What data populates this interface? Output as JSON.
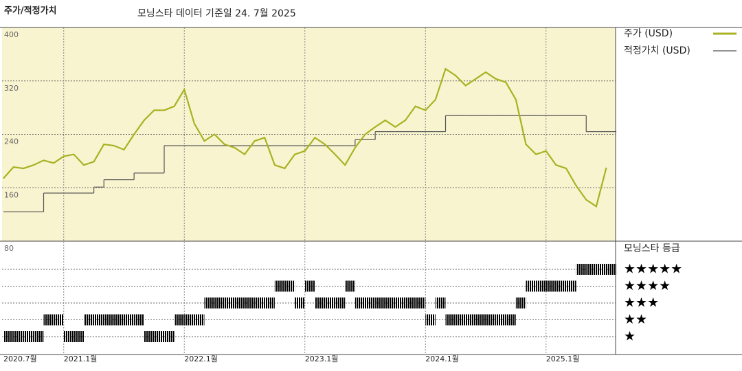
{
  "chart_data": {
    "type": "line",
    "title": "주가/적정가치",
    "subtitle": "모닝스타 데이터 기준일 24. 7월 2025",
    "categories": [
      "2020.7월",
      null,
      null,
      null,
      null,
      null,
      "2021.1월",
      null,
      null,
      null,
      null,
      null,
      null,
      null,
      null,
      null,
      null,
      null,
      "2022.1월",
      null,
      null,
      null,
      null,
      null,
      null,
      null,
      null,
      null,
      null,
      null,
      "2023.1월",
      null,
      null,
      null,
      null,
      null,
      null,
      null,
      null,
      null,
      null,
      null,
      "2024.1월",
      null,
      null,
      null,
      null,
      null,
      null,
      null,
      null,
      null,
      null,
      null,
      "2025.1월",
      null,
      null,
      null,
      null,
      null,
      null
    ],
    "series": [
      {
        "name": "주가 (USD)",
        "color": "#a9b122",
        "style": "line",
        "values": [
          174,
          191,
          189,
          194,
          201,
          197,
          207,
          210,
          194,
          199,
          225,
          223,
          217,
          240,
          261,
          276,
          276,
          282,
          307,
          256,
          230,
          240,
          225,
          220,
          210,
          230,
          235,
          194,
          189,
          210,
          215,
          235,
          225,
          210,
          194,
          220,
          240,
          251,
          261,
          251,
          261,
          282,
          276,
          292,
          338,
          328,
          313,
          323,
          333,
          323,
          318,
          292,
          225,
          210,
          215,
          194,
          189,
          163,
          142,
          132,
          190
        ]
      },
      {
        "name": "적정가치 (USD)",
        "color": "#555555",
        "style": "step",
        "values": [
          124,
          124,
          124,
          124,
          152,
          152,
          152,
          152,
          152,
          161,
          172,
          172,
          172,
          182,
          182,
          182,
          223,
          223,
          223,
          223,
          223,
          223,
          223,
          223,
          223,
          223,
          223,
          223,
          223,
          223,
          223,
          223,
          223,
          223,
          223,
          232,
          232,
          244,
          244,
          244,
          244,
          244,
          244,
          244,
          268,
          268,
          268,
          268,
          268,
          268,
          268,
          268,
          268,
          268,
          268,
          268,
          268,
          268,
          244,
          244,
          244
        ]
      }
    ],
    "ylim": [
      80,
      400
    ],
    "yticks": [
      80,
      160,
      240,
      320,
      400
    ],
    "grid": true,
    "background": "#f8f4cf",
    "ratings": {
      "title": "모닝스타 등급",
      "levels": [
        {
          "value": 5,
          "label": "★★★★★"
        },
        {
          "value": 4,
          "label": "★★★★"
        },
        {
          "value": 3,
          "label": "★★★"
        },
        {
          "value": 2,
          "label": "★★"
        },
        {
          "value": 1,
          "label": "★"
        }
      ],
      "colors": [
        "#333333",
        "#333333",
        "#333333",
        "#333333",
        "#3d8a6e"
      ],
      "values": [
        1,
        1,
        1,
        1,
        2,
        2,
        1,
        1,
        2,
        2,
        2,
        2,
        2,
        2,
        1,
        1,
        1,
        2,
        2,
        2,
        3,
        3,
        3,
        3,
        3,
        3,
        3,
        4,
        4,
        3,
        4,
        3,
        3,
        3,
        4,
        3,
        3,
        3,
        3,
        3,
        3,
        3,
        2,
        3,
        2,
        2,
        2,
        2,
        2,
        2,
        2,
        3,
        4,
        4,
        4,
        4,
        4,
        5,
        5,
        5,
        5
      ]
    }
  }
}
